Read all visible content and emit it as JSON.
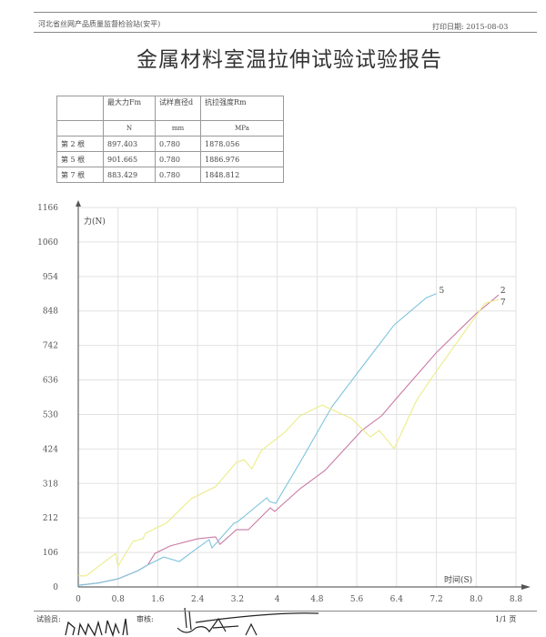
{
  "header": {
    "organization": "河北省丝网产品质量监督检验站(安平)",
    "print_date": "打印日期: 2015-08-03"
  },
  "title": "金属材料室温拉伸试验试验报告",
  "table": {
    "headers": [
      "",
      "最大力Fm",
      "试样直径d",
      "抗拉强度Rm"
    ],
    "units": [
      "",
      "N",
      "mm",
      "MPa"
    ],
    "rows": [
      [
        "第 2 根",
        "897.403",
        "0.780",
        "1878.056"
      ],
      [
        "第 5 根",
        "901.665",
        "0.780",
        "1886.976"
      ],
      [
        "第 7 根",
        "883.429",
        "0.780",
        "1848.812"
      ]
    ]
  },
  "chart_data": {
    "type": "line",
    "xlabel": "时间(S)",
    "ylabel": "力(N)",
    "xlim": [
      0,
      8.8
    ],
    "ylim": [
      0,
      1166
    ],
    "x_ticks": [
      "0",
      "0.8",
      "1.6",
      "2.4",
      "3.2",
      "4",
      "4.8",
      "5.6",
      "6.4",
      "7.2",
      "8.0",
      "8.8"
    ],
    "y_ticks": [
      "0",
      "106",
      "212",
      "318",
      "424",
      "530",
      "636",
      "742",
      "848",
      "954",
      "1060",
      "1166"
    ],
    "grid": true,
    "series": [
      {
        "name": "2",
        "color": "#c97aa6",
        "points": [
          [
            0,
            5
          ],
          [
            0.4,
            12
          ],
          [
            0.8,
            25
          ],
          [
            1.2,
            50
          ],
          [
            1.4,
            68
          ],
          [
            1.54,
            103
          ],
          [
            1.85,
            126
          ],
          [
            2.4,
            148
          ],
          [
            2.76,
            154
          ],
          [
            2.85,
            131
          ],
          [
            3.18,
            176
          ],
          [
            3.42,
            176
          ],
          [
            3.86,
            243
          ],
          [
            3.95,
            232
          ],
          [
            4.46,
            302
          ],
          [
            4.96,
            358
          ],
          [
            5.7,
            481
          ],
          [
            6.1,
            526
          ],
          [
            6.4,
            580
          ],
          [
            6.8,
            650
          ],
          [
            7.2,
            720
          ],
          [
            7.6,
            780
          ],
          [
            8.0,
            840
          ],
          [
            8.45,
            897
          ]
        ]
      },
      {
        "name": "5",
        "color": "#7cc4dc",
        "points": [
          [
            0,
            5
          ],
          [
            0.4,
            12
          ],
          [
            0.8,
            25
          ],
          [
            1.2,
            50
          ],
          [
            1.4,
            68
          ],
          [
            1.72,
            92
          ],
          [
            2.03,
            78
          ],
          [
            2.4,
            120
          ],
          [
            2.63,
            145
          ],
          [
            2.69,
            120
          ],
          [
            3.13,
            196
          ],
          [
            3.2,
            200
          ],
          [
            3.79,
            274
          ],
          [
            3.85,
            262
          ],
          [
            3.97,
            257
          ],
          [
            4.46,
            383
          ],
          [
            5.1,
            554
          ],
          [
            5.75,
            685
          ],
          [
            6.35,
            805
          ],
          [
            7.0,
            889
          ],
          [
            7.2,
            901
          ]
        ]
      },
      {
        "name": "7",
        "color": "#ecec8a",
        "points": [
          [
            0,
            34
          ],
          [
            0.16,
            34
          ],
          [
            0.75,
            103
          ],
          [
            0.8,
            64
          ],
          [
            1.1,
            140
          ],
          [
            1.3,
            148
          ],
          [
            1.35,
            165
          ],
          [
            1.77,
            196
          ],
          [
            2.27,
            271
          ],
          [
            2.76,
            308
          ],
          [
            3.18,
            383
          ],
          [
            3.33,
            391
          ],
          [
            3.49,
            363
          ],
          [
            3.68,
            419
          ],
          [
            4.15,
            475
          ],
          [
            4.46,
            526
          ],
          [
            4.9,
            559
          ],
          [
            5.5,
            517
          ],
          [
            5.87,
            461
          ],
          [
            6.05,
            481
          ],
          [
            6.35,
            425
          ],
          [
            6.8,
            573
          ],
          [
            7.08,
            637
          ],
          [
            8.18,
            872
          ],
          [
            8.45,
            883
          ]
        ]
      }
    ]
  },
  "footer": {
    "tester_label": "试验员:",
    "reviewer_label": "审核:",
    "page": "1/1 页"
  }
}
